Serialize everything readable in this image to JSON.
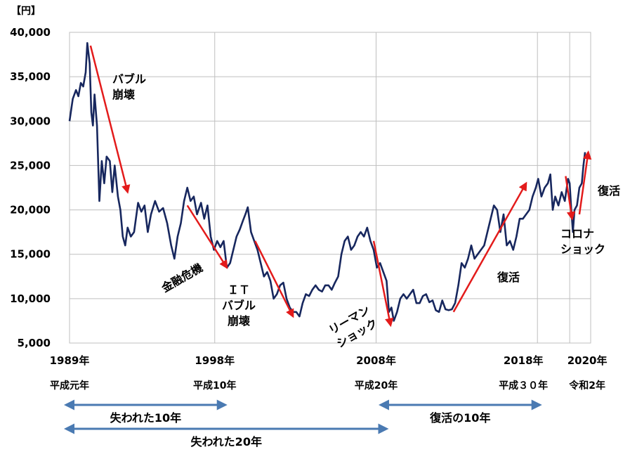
{
  "chart_data": {
    "type": "line",
    "unit_label": "【円】",
    "y_ticks": [
      "40,000",
      "35,000",
      "30,000",
      "25,000",
      "20,000",
      "15,000",
      "10,000",
      "5,000"
    ],
    "ylim": [
      5000,
      40000
    ],
    "x_labels": [
      {
        "year": 1989,
        "label": "1989年",
        "era": "平成元年"
      },
      {
        "year": 1998,
        "label": "1998年",
        "era": "平成10年"
      },
      {
        "year": 2008,
        "label": "2008年",
        "era": "平成20年"
      },
      {
        "year": 2018,
        "label": "2018年",
        "era": "平成３０年"
      },
      {
        "year": 2020,
        "label": "2020年",
        "era": "令和2年"
      }
    ],
    "xlim": [
      1989.0,
      2021.3
    ],
    "grid": true,
    "series": [
      {
        "color": "#17275e",
        "points": [
          [
            1989.0,
            30000
          ],
          [
            1989.2,
            32500
          ],
          [
            1989.4,
            33500
          ],
          [
            1989.55,
            32800
          ],
          [
            1989.7,
            34300
          ],
          [
            1989.85,
            33900
          ],
          [
            1990.0,
            35500
          ],
          [
            1990.1,
            38800
          ],
          [
            1990.25,
            36500
          ],
          [
            1990.35,
            31000
          ],
          [
            1990.45,
            29500
          ],
          [
            1990.55,
            33000
          ],
          [
            1990.7,
            29500
          ],
          [
            1990.85,
            21000
          ],
          [
            1991.0,
            25500
          ],
          [
            1991.15,
            23000
          ],
          [
            1991.3,
            26000
          ],
          [
            1991.5,
            25500
          ],
          [
            1991.65,
            22000
          ],
          [
            1991.8,
            25000
          ],
          [
            1992.0,
            21500
          ],
          [
            1992.15,
            20000
          ],
          [
            1992.3,
            17000
          ],
          [
            1992.45,
            16000
          ],
          [
            1992.6,
            18000
          ],
          [
            1992.8,
            17000
          ],
          [
            1993.0,
            17500
          ],
          [
            1993.25,
            20800
          ],
          [
            1993.45,
            19800
          ],
          [
            1993.65,
            20500
          ],
          [
            1993.85,
            17500
          ],
          [
            1994.05,
            19500
          ],
          [
            1994.3,
            21000
          ],
          [
            1994.55,
            19800
          ],
          [
            1994.8,
            20200
          ],
          [
            1995.05,
            18500
          ],
          [
            1995.3,
            16000
          ],
          [
            1995.5,
            14500
          ],
          [
            1995.7,
            17000
          ],
          [
            1995.9,
            18500
          ],
          [
            1996.1,
            21000
          ],
          [
            1996.3,
            22500
          ],
          [
            1996.5,
            21000
          ],
          [
            1996.7,
            21500
          ],
          [
            1996.9,
            19500
          ],
          [
            1997.15,
            20800
          ],
          [
            1997.35,
            19000
          ],
          [
            1997.55,
            20500
          ],
          [
            1997.75,
            17000
          ],
          [
            1997.95,
            15500
          ],
          [
            1998.15,
            16500
          ],
          [
            1998.35,
            15800
          ],
          [
            1998.55,
            16500
          ],
          [
            1998.75,
            13500
          ],
          [
            1998.95,
            14000
          ],
          [
            1999.15,
            15500
          ],
          [
            1999.35,
            17000
          ],
          [
            1999.55,
            17800
          ],
          [
            1999.75,
            18800
          ],
          [
            1999.9,
            19500
          ],
          [
            2000.05,
            20300
          ],
          [
            2000.25,
            17500
          ],
          [
            2000.45,
            16500
          ],
          [
            2000.65,
            15500
          ],
          [
            2000.85,
            14000
          ],
          [
            2001.05,
            12500
          ],
          [
            2001.25,
            13000
          ],
          [
            2001.45,
            12000
          ],
          [
            2001.65,
            10000
          ],
          [
            2001.85,
            10500
          ],
          [
            2002.05,
            11500
          ],
          [
            2002.25,
            11800
          ],
          [
            2002.45,
            10000
          ],
          [
            2002.65,
            9000
          ],
          [
            2002.85,
            8500
          ],
          [
            2003.05,
            8500
          ],
          [
            2003.25,
            8000
          ],
          [
            2003.45,
            9500
          ],
          [
            2003.65,
            10500
          ],
          [
            2003.85,
            10300
          ],
          [
            2004.05,
            11000
          ],
          [
            2004.25,
            11500
          ],
          [
            2004.45,
            11000
          ],
          [
            2004.65,
            10800
          ],
          [
            2004.85,
            11500
          ],
          [
            2005.05,
            11500
          ],
          [
            2005.25,
            11000
          ],
          [
            2005.45,
            11800
          ],
          [
            2005.65,
            12500
          ],
          [
            2005.85,
            15000
          ],
          [
            2006.05,
            16500
          ],
          [
            2006.25,
            17000
          ],
          [
            2006.45,
            15500
          ],
          [
            2006.65,
            16000
          ],
          [
            2006.85,
            17000
          ],
          [
            2007.05,
            17500
          ],
          [
            2007.25,
            17000
          ],
          [
            2007.45,
            18000
          ],
          [
            2007.65,
            16500
          ],
          [
            2007.85,
            15500
          ],
          [
            2008.05,
            13500
          ],
          [
            2008.25,
            14000
          ],
          [
            2008.45,
            13000
          ],
          [
            2008.65,
            12000
          ],
          [
            2008.8,
            8500
          ],
          [
            2008.95,
            9000
          ],
          [
            2009.1,
            7500
          ],
          [
            2009.3,
            8500
          ],
          [
            2009.5,
            10000
          ],
          [
            2009.7,
            10500
          ],
          [
            2009.9,
            10000
          ],
          [
            2010.1,
            10500
          ],
          [
            2010.3,
            11000
          ],
          [
            2010.5,
            9500
          ],
          [
            2010.7,
            9500
          ],
          [
            2010.9,
            10300
          ],
          [
            2011.1,
            10500
          ],
          [
            2011.3,
            9600
          ],
          [
            2011.5,
            9800
          ],
          [
            2011.7,
            8700
          ],
          [
            2011.9,
            8500
          ],
          [
            2012.1,
            9800
          ],
          [
            2012.3,
            8800
          ],
          [
            2012.5,
            8700
          ],
          [
            2012.7,
            8800
          ],
          [
            2012.9,
            9500
          ],
          [
            2013.1,
            11500
          ],
          [
            2013.3,
            14000
          ],
          [
            2013.5,
            13500
          ],
          [
            2013.7,
            14500
          ],
          [
            2013.9,
            16000
          ],
          [
            2014.1,
            14500
          ],
          [
            2014.3,
            15000
          ],
          [
            2014.5,
            15500
          ],
          [
            2014.7,
            16000
          ],
          [
            2014.9,
            17500
          ],
          [
            2015.1,
            19000
          ],
          [
            2015.3,
            20500
          ],
          [
            2015.5,
            20000
          ],
          [
            2015.7,
            17500
          ],
          [
            2015.9,
            19500
          ],
          [
            2016.1,
            16000
          ],
          [
            2016.3,
            16500
          ],
          [
            2016.5,
            15500
          ],
          [
            2016.7,
            17000
          ],
          [
            2016.9,
            19000
          ],
          [
            2017.1,
            19000
          ],
          [
            2017.3,
            19500
          ],
          [
            2017.5,
            20000
          ],
          [
            2017.7,
            21500
          ],
          [
            2017.9,
            22500
          ],
          [
            2018.05,
            23500
          ],
          [
            2018.25,
            21500
          ],
          [
            2018.45,
            22500
          ],
          [
            2018.65,
            23000
          ],
          [
            2018.8,
            24000
          ],
          [
            2018.95,
            20000
          ],
          [
            2019.1,
            21500
          ],
          [
            2019.3,
            20500
          ],
          [
            2019.5,
            22000
          ],
          [
            2019.7,
            21000
          ],
          [
            2019.9,
            23500
          ],
          [
            2020.0,
            23000
          ],
          [
            2020.1,
            20000
          ],
          [
            2020.2,
            17500
          ],
          [
            2020.3,
            20000
          ],
          [
            2020.45,
            20500
          ],
          [
            2020.6,
            22500
          ],
          [
            2020.75,
            23000
          ],
          [
            2020.85,
            25000
          ],
          [
            2020.95,
            26500
          ]
        ]
      }
    ],
    "annotations": [
      {
        "lines": [
          "バブル",
          "崩壊"
        ],
        "arrow": [
          [
            1990.3,
            38500
          ],
          [
            1992.6,
            22000
          ]
        ]
      },
      {
        "lines": [
          "金融危機"
        ],
        "arrow": [
          [
            1996.3,
            20500
          ],
          [
            1998.75,
            13500
          ]
        ]
      },
      {
        "lines": [
          "ＩＴ",
          "バブル",
          "崩壊"
        ],
        "arrow": [
          [
            2000.5,
            16500
          ],
          [
            2002.85,
            8000
          ]
        ]
      },
      {
        "lines": [
          "リーマン",
          "ショック"
        ],
        "arrow": [
          [
            2007.85,
            16500
          ],
          [
            2008.9,
            7000
          ]
        ]
      },
      {
        "lines": [
          "復活"
        ],
        "arrow": [
          [
            2012.8,
            8500
          ],
          [
            2017.3,
            23000
          ]
        ]
      },
      {
        "lines": [
          "コロナ",
          "ショック"
        ],
        "arrow": [
          [
            2019.75,
            23800
          ],
          [
            2020.15,
            19000
          ]
        ]
      },
      {
        "lines": [
          "復活"
        ],
        "arrow": [
          [
            2020.6,
            19500
          ],
          [
            2021.15,
            26500
          ]
        ]
      }
    ],
    "periods": [
      {
        "label": "失われた10年",
        "from": 1989.0,
        "to": 1999.0
      },
      {
        "label": "失われた20年",
        "from": 1989.0,
        "to": 2009.0
      },
      {
        "label": "復活の10年",
        "from": 2008.5,
        "to": 2018.5
      }
    ],
    "colors": {
      "line": "#17275e",
      "arrow": "#e31b1b",
      "period_arrow": "#4a7ab2",
      "grid": "#bfbfbf"
    }
  }
}
